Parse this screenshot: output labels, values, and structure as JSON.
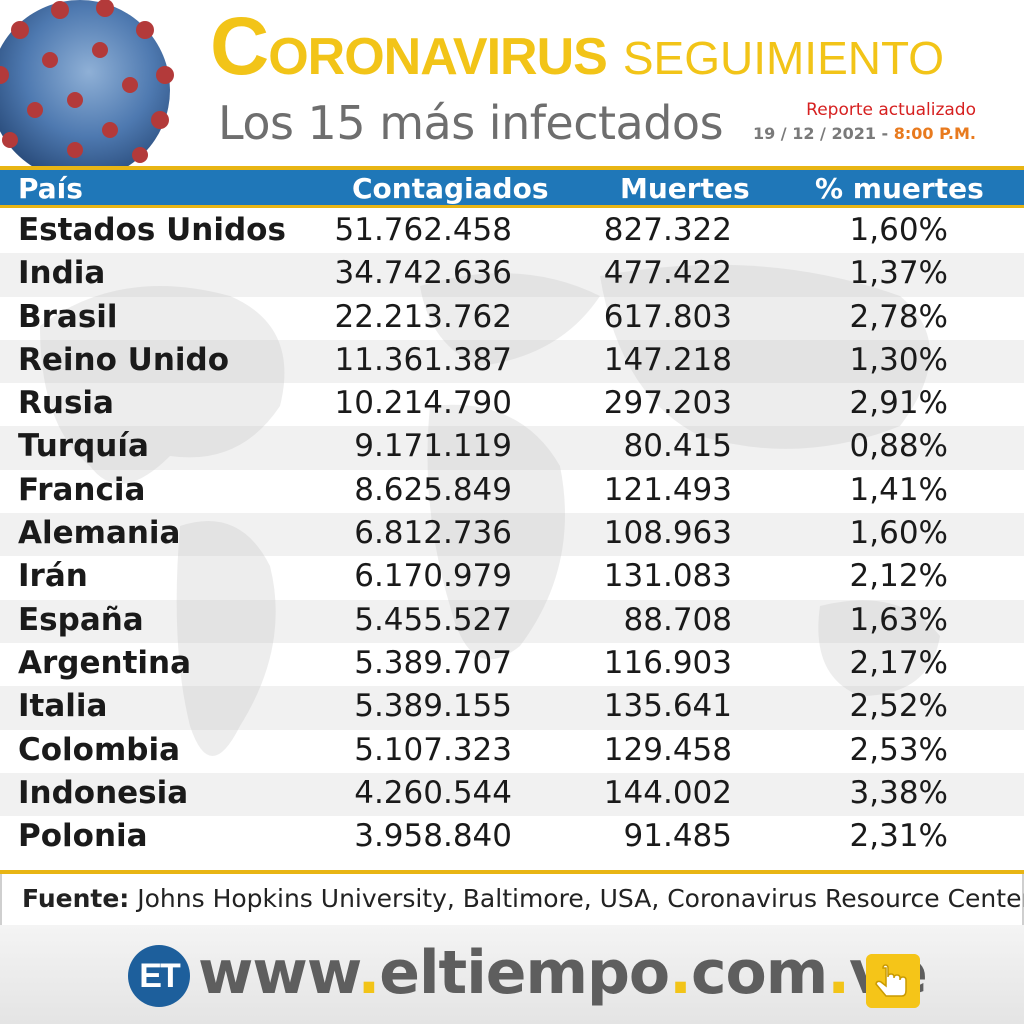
{
  "header": {
    "title_initial": "C",
    "title_rest": "ORONAVIRUS",
    "title_tag": "SEGUIMIENTO",
    "subtitle": "Los 15 más infectados",
    "report_label": "Reporte actualizado",
    "report_date": "19 / 12 / 2021",
    "report_sep": " - ",
    "report_time": "8:00 P.M."
  },
  "chart_data": {
    "type": "table",
    "columns": [
      "País",
      "Contagiados",
      "Muertes",
      "% muertes"
    ],
    "rows": [
      [
        "Estados Unidos",
        "51.762.458",
        "827.322",
        "1,60%"
      ],
      [
        "India",
        "34.742.636",
        "477.422",
        "1,37%"
      ],
      [
        "Brasil",
        "22.213.762",
        "617.803",
        "2,78%"
      ],
      [
        "Reino Unido",
        "11.361.387",
        "147.218",
        "1,30%"
      ],
      [
        "Rusia",
        "10.214.790",
        "297.203",
        "2,91%"
      ],
      [
        "Turquía",
        "9.171.119",
        "80.415",
        "0,88%"
      ],
      [
        "Francia",
        "8.625.849",
        "121.493",
        "1,41%"
      ],
      [
        "Alemania",
        "6.812.736",
        "108.963",
        "1,60%"
      ],
      [
        "Irán",
        "6.170.979",
        "131.083",
        "2,12%"
      ],
      [
        "España",
        "5.455.527",
        "88.708",
        "1,63%"
      ],
      [
        "Argentina",
        "5.389.707",
        "116.903",
        "2,17%"
      ],
      [
        "Italia",
        "5.389.155",
        "135.641",
        "2,52%"
      ],
      [
        "Colombia",
        "5.107.323",
        "129.458",
        "2,53%"
      ],
      [
        "Indonesia",
        "4.260.544",
        "144.002",
        "3,38%"
      ],
      [
        "Polonia",
        "3.958.840",
        "91.485",
        "2,31%"
      ]
    ]
  },
  "footer": {
    "source_label": "Fuente:",
    "source_text": " Johns Hopkins University, Baltimore, USA, Coronavirus Resource Center",
    "logo_text": "ET",
    "url_parts": [
      "www",
      ".",
      "eltiempo",
      ".",
      "com",
      ".",
      "ve"
    ]
  },
  "colors": {
    "header_blue": "#1f77b8",
    "accent_yellow": "#f2c418",
    "report_red": "#d62020",
    "time_orange": "#e87a1e"
  },
  "icons": [
    "virus-icon",
    "world-map-icon",
    "et-logo-icon",
    "hand-pointer-icon"
  ]
}
